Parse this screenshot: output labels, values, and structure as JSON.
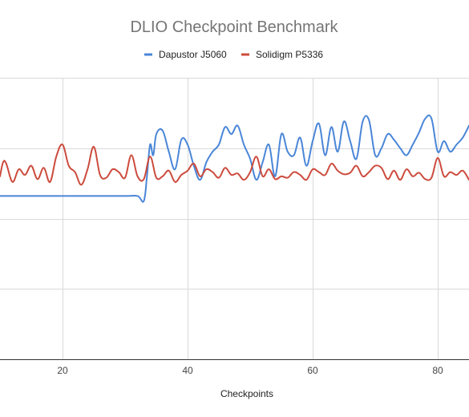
{
  "chart_data": {
    "type": "line",
    "title": "DLIO Checkpoint Benchmark",
    "xlabel": "Checkpoints",
    "ylabel": "",
    "x_ticks": [
      20,
      40,
      60,
      80
    ],
    "xlim": [
      10,
      85
    ],
    "ylim": [
      0,
      4
    ],
    "y_gridlines": [
      0,
      1,
      2,
      3,
      4
    ],
    "grid": true,
    "legend_position": "top",
    "series": [
      {
        "name": "Dapustor J5060",
        "color": "#4a86d8",
        "x": [
          10,
          15,
          20,
          25,
          30,
          32,
          33,
          33.5,
          34,
          34.5,
          35,
          36,
          37,
          38,
          39,
          40,
          41,
          42,
          43,
          44,
          45,
          46,
          47,
          48,
          49,
          50,
          51,
          52,
          53,
          54,
          55,
          56,
          57,
          58,
          59,
          60,
          61,
          62,
          63,
          64,
          65,
          66,
          67,
          68,
          69,
          70,
          71,
          72,
          73,
          74,
          75,
          76,
          77,
          78,
          79,
          80,
          81,
          82,
          83,
          84,
          85
        ],
        "values": [
          2.32,
          2.32,
          2.32,
          2.32,
          2.32,
          2.32,
          2.25,
          2.6,
          3.05,
          2.9,
          3.2,
          3.25,
          2.95,
          2.7,
          3.12,
          3.05,
          2.75,
          2.55,
          2.8,
          2.95,
          3.05,
          3.3,
          3.2,
          3.32,
          3.05,
          2.85,
          2.55,
          2.8,
          3.05,
          2.6,
          3.2,
          2.95,
          2.9,
          3.15,
          2.75,
          3.1,
          3.35,
          2.9,
          3.3,
          2.95,
          3.38,
          3.1,
          2.85,
          3.38,
          3.4,
          2.9,
          3.0,
          3.2,
          3.12,
          3.0,
          2.9,
          3.05,
          3.22,
          3.42,
          3.42,
          2.95,
          3.1,
          2.95,
          3.05,
          3.15,
          3.32
        ]
      },
      {
        "name": "Solidigm P5336",
        "color": "#cc4b3d",
        "x": [
          10,
          10.5,
          11,
          12,
          13,
          14,
          15,
          16,
          17,
          18,
          19,
          20,
          21,
          22,
          23,
          24,
          25,
          26,
          27,
          28,
          29,
          30,
          31,
          32,
          33,
          34,
          35,
          36,
          37,
          38,
          39,
          40,
          41,
          42,
          43,
          44,
          45,
          46,
          47,
          48,
          49,
          50,
          51,
          52,
          53,
          54,
          55,
          56,
          57,
          58,
          59,
          60,
          61,
          62,
          63,
          64,
          65,
          66,
          67,
          68,
          69,
          70,
          71,
          72,
          73,
          74,
          75,
          76,
          77,
          78,
          79,
          80,
          81,
          82,
          83,
          84,
          85
        ],
        "values": [
          2.6,
          2.8,
          2.78,
          2.52,
          2.7,
          2.62,
          2.75,
          2.56,
          2.72,
          2.52,
          2.88,
          3.05,
          2.75,
          2.66,
          2.48,
          2.7,
          3.02,
          2.62,
          2.58,
          2.7,
          2.66,
          2.58,
          2.9,
          2.6,
          2.56,
          2.88,
          2.58,
          2.6,
          2.68,
          2.52,
          2.62,
          2.68,
          2.78,
          2.6,
          2.7,
          2.66,
          2.58,
          2.72,
          2.62,
          2.64,
          2.55,
          2.66,
          2.88,
          2.6,
          2.7,
          2.56,
          2.6,
          2.58,
          2.66,
          2.62,
          2.55,
          2.7,
          2.66,
          2.62,
          2.78,
          2.68,
          2.63,
          2.65,
          2.75,
          2.6,
          2.66,
          2.75,
          2.72,
          2.56,
          2.68,
          2.55,
          2.7,
          2.6,
          2.65,
          2.56,
          2.58,
          2.86,
          2.6,
          2.66,
          2.62,
          2.68,
          2.55
        ]
      }
    ]
  }
}
